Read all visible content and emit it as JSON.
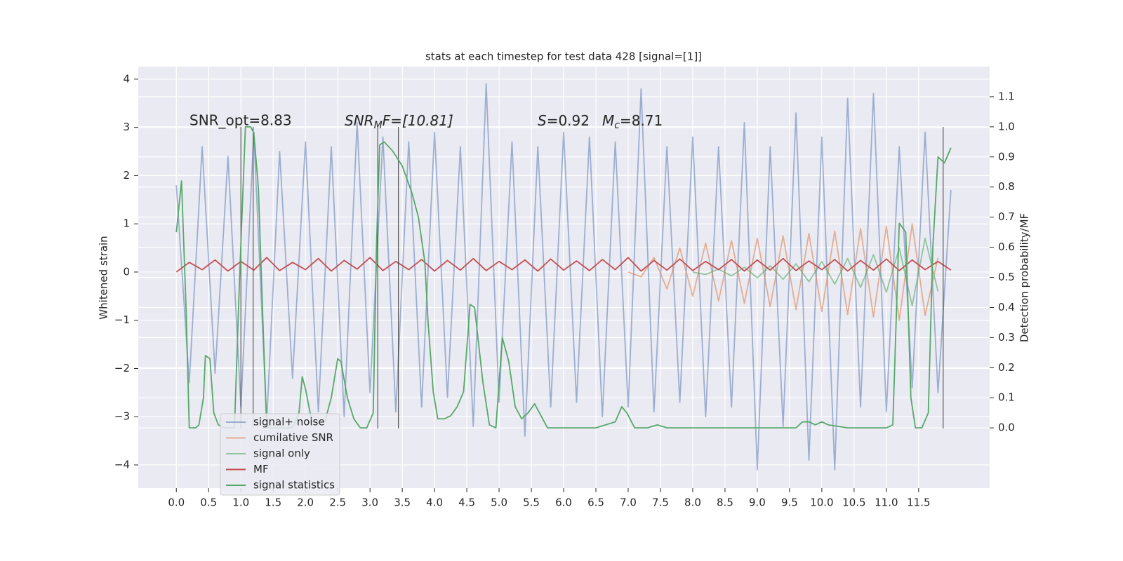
{
  "chart_data": {
    "type": "line",
    "title": "stats at each timestep for test data 428 [signal=[1]]",
    "ylabel": "Whitened strain",
    "y2label": "Detection probability/MF",
    "annotations": [
      [
        "SNR_opt=8.83"
      ],
      [
        "SNR",
        "M",
        "F=[10.81]"
      ],
      [
        "S",
        "=0.92"
      ],
      [
        "M",
        "c",
        "=8.71"
      ]
    ],
    "xlim": [
      -0.59,
      12.6
    ],
    "ylim": [
      -4.48,
      4.26
    ],
    "y2lim": [
      -0.2,
      1.2
    ],
    "grid": true,
    "legend": "lower left",
    "xticks": [
      {
        "value": 0,
        "label": "0.0"
      },
      0.5,
      {
        "value": 1,
        "label": "1.0"
      },
      1.5,
      {
        "value": 2,
        "label": "2.0"
      },
      2.5,
      {
        "value": 3,
        "label": "3.0"
      },
      3.5,
      {
        "value": 4,
        "label": "4.0"
      },
      4.5,
      {
        "value": 5,
        "label": "5.0"
      },
      5.5,
      {
        "value": 6,
        "label": "6.0"
      },
      6.5,
      {
        "value": 7,
        "label": "7.0"
      },
      7.5,
      {
        "value": 8,
        "label": "8.0"
      },
      8.5,
      {
        "value": 9,
        "label": "9.0"
      },
      9.5,
      {
        "value": 10,
        "label": "10.0"
      },
      10.5,
      {
        "value": 11,
        "label": "11.0"
      },
      11.5
    ],
    "yticks": [
      {
        "value": -4,
        "label": "−4"
      },
      {
        "value": -3,
        "label": "−3"
      },
      {
        "value": -2,
        "label": "−2"
      },
      {
        "value": -1,
        "label": "−1"
      },
      0,
      1,
      2,
      3,
      4
    ],
    "y2ticks": [
      {
        "value": 0,
        "label": "0.0"
      },
      0.1,
      0.2,
      0.3,
      0.4,
      0.5,
      0.6,
      0.7,
      0.8,
      0.9,
      {
        "value": 1,
        "label": "1.0"
      },
      1.1
    ],
    "vlines": [
      1.0,
      1.19,
      3.12,
      3.44,
      11.88
    ],
    "series": [
      {
        "name": "signal+ noise",
        "color": "#4c72b0",
        "opacity": 0.5,
        "x": [
          0,
          0.2,
          0.4,
          0.6,
          0.8,
          1,
          1.2,
          1.4,
          1.6,
          1.8,
          2,
          2.2,
          2.4,
          2.6,
          2.8,
          3,
          3.2,
          3.4,
          3.6,
          3.8,
          4,
          4.2,
          4.4,
          4.6,
          4.8,
          5,
          5.2,
          5.4,
          5.6,
          5.8,
          6,
          6.2,
          6.4,
          6.6,
          6.8,
          7,
          7.2,
          7.4,
          7.6,
          7.8,
          8,
          8.2,
          8.4,
          8.6,
          8.8,
          9,
          9.2,
          9.4,
          9.6,
          9.8,
          10,
          10.2,
          10.4,
          10.6,
          10.8,
          11,
          11.2,
          11.4,
          11.6,
          11.8,
          12
        ],
        "values": [
          1.8,
          -2.3,
          2.6,
          -2.1,
          2.4,
          -2.8,
          2.9,
          -3.1,
          2.5,
          -2.2,
          2.7,
          -2.9,
          2.6,
          -3.0,
          3.1,
          -2.5,
          2.8,
          -2.9,
          2.7,
          -2.8,
          2.9,
          -2.6,
          2.6,
          -3.2,
          3.9,
          -2.7,
          2.7,
          -3.4,
          2.6,
          -2.8,
          2.9,
          -2.7,
          2.8,
          -3.0,
          2.7,
          -2.8,
          3.8,
          -2.9,
          2.6,
          -2.7,
          2.8,
          -3.0,
          2.6,
          -2.8,
          3.1,
          -4.1,
          2.6,
          -3.2,
          3.3,
          -3.9,
          2.8,
          -4.1,
          3.6,
          -2.8,
          3.7,
          -2.9,
          2.6,
          -2.4,
          2.9,
          -2.5,
          1.7
        ]
      },
      {
        "name": "cumilative SNR",
        "color": "#dd8452",
        "opacity": 0.6,
        "x": [
          7,
          7.2,
          7.4,
          7.6,
          7.8,
          8,
          8.2,
          8.4,
          8.6,
          8.8,
          9,
          9.2,
          9.4,
          9.6,
          9.8,
          10,
          10.2,
          10.4,
          10.6,
          10.8,
          11,
          11.2,
          11.4,
          11.6,
          11.8
        ],
        "values": [
          0.0,
          -0.1,
          0.3,
          -0.35,
          0.5,
          -0.5,
          0.6,
          -0.6,
          0.65,
          -0.65,
          0.7,
          -0.72,
          0.75,
          -0.78,
          0.8,
          -0.82,
          0.85,
          -0.88,
          0.9,
          -0.93,
          0.95,
          -1.0,
          1.0,
          -0.9,
          0.3
        ]
      },
      {
        "name": "signal only",
        "color": "#55a868",
        "opacity": 0.6,
        "x": [
          8,
          8.2,
          8.4,
          8.6,
          8.8,
          9,
          9.2,
          9.4,
          9.6,
          9.8,
          10,
          10.2,
          10.4,
          10.6,
          10.8,
          11,
          11.2,
          11.4,
          11.6,
          11.8
        ],
        "values": [
          0.0,
          -0.05,
          0.06,
          -0.08,
          0.1,
          -0.12,
          0.13,
          -0.15,
          0.17,
          -0.2,
          0.22,
          -0.25,
          0.28,
          -0.32,
          0.36,
          -0.42,
          0.5,
          -0.7,
          0.7,
          -0.4
        ]
      },
      {
        "name": "MF",
        "color": "#c44e52",
        "opacity": 1,
        "x": [
          0,
          0.2,
          0.4,
          0.6,
          0.8,
          1,
          1.2,
          1.4,
          1.6,
          1.8,
          2,
          2.2,
          2.4,
          2.6,
          2.8,
          3,
          3.2,
          3.4,
          3.6,
          3.8,
          4,
          4.2,
          4.4,
          4.6,
          4.8,
          5,
          5.2,
          5.4,
          5.6,
          5.8,
          6,
          6.2,
          6.4,
          6.6,
          6.8,
          7,
          7.2,
          7.4,
          7.6,
          7.8,
          8,
          8.2,
          8.4,
          8.6,
          8.8,
          9,
          9.2,
          9.4,
          9.6,
          9.8,
          10,
          10.2,
          10.4,
          10.6,
          10.8,
          11,
          11.2,
          11.4,
          11.6,
          11.8,
          12
        ],
        "values": [
          0.0,
          0.2,
          0.05,
          0.25,
          0.02,
          0.22,
          0.04,
          0.3,
          0.03,
          0.2,
          0.05,
          0.28,
          0.02,
          0.24,
          0.06,
          0.3,
          0.03,
          0.22,
          0.05,
          0.26,
          0.02,
          0.24,
          0.04,
          0.28,
          0.03,
          0.22,
          0.05,
          0.25,
          0.02,
          0.27,
          0.04,
          0.23,
          0.03,
          0.26,
          0.05,
          0.3,
          0.02,
          0.24,
          0.04,
          0.27,
          0.03,
          0.22,
          0.05,
          0.26,
          0.02,
          0.25,
          0.04,
          0.28,
          0.03,
          0.23,
          0.05,
          0.26,
          0.02,
          0.24,
          0.04,
          0.27,
          0.03,
          0.25,
          0.05,
          0.22,
          0.04
        ]
      },
      {
        "name": "signal statistics",
        "color": "#55a868",
        "opacity": 1,
        "axis": "y2",
        "x": [
          0.0,
          0.08,
          0.15,
          0.2,
          0.3,
          0.35,
          0.42,
          0.45,
          0.52,
          0.58,
          0.65,
          0.75,
          0.9,
          0.98,
          1.07,
          1.15,
          1.2,
          1.27,
          1.35,
          1.4,
          1.6,
          1.8,
          1.9,
          1.95,
          2.0,
          2.1,
          2.3,
          2.4,
          2.5,
          2.55,
          2.65,
          2.75,
          2.85,
          2.95,
          3.05,
          3.1,
          3.15,
          3.22,
          3.35,
          3.5,
          3.65,
          3.75,
          3.85,
          3.9,
          3.98,
          4.05,
          4.15,
          4.25,
          4.35,
          4.45,
          4.55,
          4.62,
          4.75,
          4.85,
          4.95,
          5.05,
          5.15,
          5.25,
          5.35,
          5.45,
          5.55,
          5.65,
          5.75,
          6.0,
          6.5,
          6.8,
          6.9,
          6.98,
          7.1,
          7.3,
          7.45,
          7.6,
          8.0,
          9.6,
          9.7,
          9.8,
          9.9,
          10.0,
          10.1,
          10.4,
          10.8,
          11.0,
          11.1,
          11.2,
          11.3,
          11.38,
          11.45,
          11.55,
          11.65,
          11.72,
          11.8,
          11.9,
          12.0
        ],
        "values": [
          0.65,
          0.82,
          0.4,
          0.0,
          0.0,
          0.01,
          0.1,
          0.24,
          0.23,
          0.05,
          0.01,
          0.0,
          0.0,
          0.5,
          1.0,
          1.0,
          0.98,
          0.8,
          0.3,
          0.0,
          0.0,
          0.0,
          0.05,
          0.17,
          0.13,
          0.02,
          0.02,
          0.1,
          0.23,
          0.22,
          0.1,
          0.03,
          0.0,
          0.0,
          0.05,
          0.6,
          0.94,
          0.95,
          0.92,
          0.87,
          0.78,
          0.7,
          0.55,
          0.35,
          0.12,
          0.03,
          0.03,
          0.04,
          0.07,
          0.12,
          0.41,
          0.4,
          0.15,
          0.01,
          0.0,
          0.3,
          0.22,
          0.07,
          0.03,
          0.05,
          0.08,
          0.04,
          0.0,
          0.0,
          0.0,
          0.02,
          0.07,
          0.05,
          0.0,
          0.0,
          0.01,
          0.0,
          0.0,
          0.0,
          0.02,
          0.02,
          0.01,
          0.02,
          0.01,
          0.0,
          0.0,
          0.0,
          0.01,
          0.68,
          0.65,
          0.1,
          0.0,
          0.0,
          0.05,
          0.6,
          0.9,
          0.88,
          0.93
        ]
      }
    ]
  }
}
